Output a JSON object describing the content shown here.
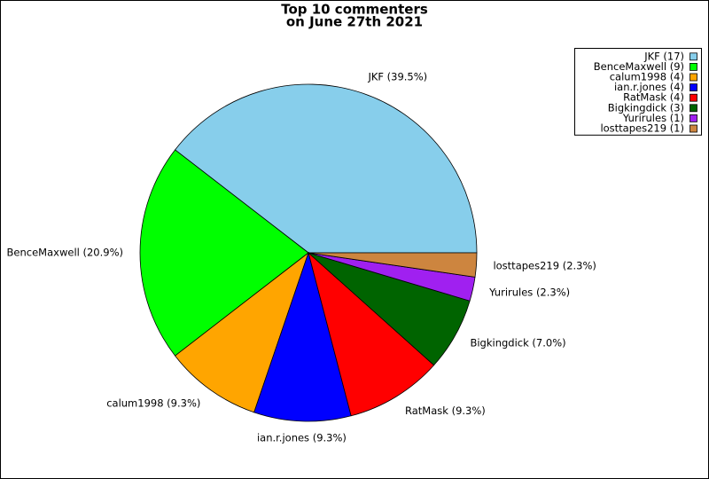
{
  "chart_data": {
    "type": "pie",
    "title": [
      "Top 10 commenters",
      "on June 27th 2021"
    ],
    "values": [
      39.5,
      20.9,
      9.3,
      9.3,
      9.3,
      7.0,
      2.3,
      2.3
    ],
    "value_labels": [
      "JKF (39.5%)",
      "BenceMaxwell (20.9%)",
      "calum1998 (9.3%)",
      "ian.r.jones (9.3%)",
      "RatMask (9.3%)",
      "Bigkingdick (7.0%)",
      "Yurirules (2.3%)",
      "losttapes219 (2.3%)"
    ],
    "legend": [
      "JKF (17)",
      "BenceMaxwell (9)",
      "calum1998 (4)",
      "ian.r.jones (4)",
      "RatMask (4)",
      "Bigkingdick (3)",
      "Yurirules (1)",
      "losttapes219 (1)"
    ],
    "colors": [
      "#87ceeb",
      "#00ff00",
      "#ffa500",
      "#0000ff",
      "#ff0000",
      "#006400",
      "#a020f0",
      "#cd853f"
    ],
    "legend_position": "upper right"
  }
}
